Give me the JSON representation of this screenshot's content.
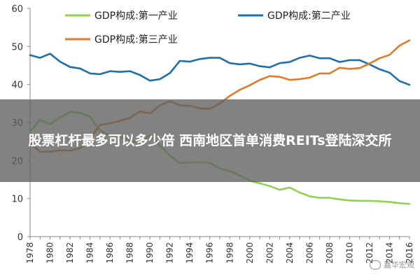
{
  "banner": {
    "headline": "股票杠杆最多可以多少倍 西南地区首单消费REITs登陆深交所"
  },
  "watermark": {
    "text": "嘉华宏观"
  },
  "chart_data": {
    "type": "line",
    "title": "",
    "xlabel": "",
    "ylabel": "",
    "ylim": [
      0,
      60
    ],
    "xlim": [
      1978,
      2016
    ],
    "yticks": [
      0,
      10,
      20,
      30,
      40,
      50,
      60
    ],
    "xticks": [
      1978,
      1980,
      1982,
      1984,
      1986,
      1988,
      1990,
      1992,
      1994,
      1996,
      1998,
      2000,
      2002,
      2004,
      2006,
      2008,
      2010,
      2012,
      2014,
      2016
    ],
    "grid": false,
    "legend": "top",
    "x": [
      1978,
      1979,
      1980,
      1981,
      1982,
      1983,
      1984,
      1985,
      1986,
      1987,
      1988,
      1989,
      1990,
      1991,
      1992,
      1993,
      1994,
      1995,
      1996,
      1997,
      1998,
      1999,
      2000,
      2001,
      2002,
      2003,
      2004,
      2005,
      2006,
      2007,
      2008,
      2009,
      2010,
      2011,
      2012,
      2013,
      2014,
      2015,
      2016
    ],
    "series": [
      {
        "name": "GDP构成:第一产业",
        "color": "#92d050",
        "values": [
          27.7,
          30.7,
          29.6,
          31.3,
          32.8,
          32.6,
          31.5,
          27.9,
          26.6,
          26.3,
          25.2,
          24.6,
          26.6,
          24.0,
          21.3,
          19.3,
          19.5,
          19.6,
          19.3,
          17.9,
          17.2,
          16.1,
          14.7,
          14.0,
          13.3,
          12.3,
          12.9,
          11.6,
          10.6,
          10.2,
          10.2,
          9.8,
          9.5,
          9.4,
          9.4,
          9.3,
          9.1,
          8.8,
          8.6
        ]
      },
      {
        "name": "GDP构成:第二产业",
        "color": "#1f6fa8",
        "values": [
          47.7,
          47.0,
          48.1,
          46.0,
          44.6,
          44.2,
          42.9,
          42.7,
          43.5,
          43.3,
          43.5,
          42.5,
          41.0,
          41.4,
          43.0,
          46.2,
          46.0,
          46.7,
          47.0,
          47.0,
          45.6,
          45.3,
          45.5,
          44.8,
          44.5,
          45.6,
          45.9,
          47.0,
          47.6,
          46.9,
          46.9,
          45.9,
          46.4,
          46.4,
          45.3,
          44.0,
          43.1,
          40.9,
          39.9
        ]
      },
      {
        "name": "GDP构成:第三产业",
        "color": "#e07b2a",
        "values": [
          24.6,
          22.3,
          22.3,
          22.7,
          22.6,
          23.2,
          25.6,
          29.4,
          29.8,
          30.4,
          31.2,
          32.9,
          32.4,
          34.5,
          35.6,
          34.5,
          34.4,
          33.7,
          33.6,
          35.0,
          37.0,
          38.6,
          39.8,
          41.2,
          42.2,
          42.0,
          41.2,
          41.4,
          41.8,
          42.9,
          42.9,
          44.4,
          44.1,
          44.3,
          45.5,
          46.9,
          47.8,
          50.2,
          51.6
        ]
      }
    ]
  }
}
